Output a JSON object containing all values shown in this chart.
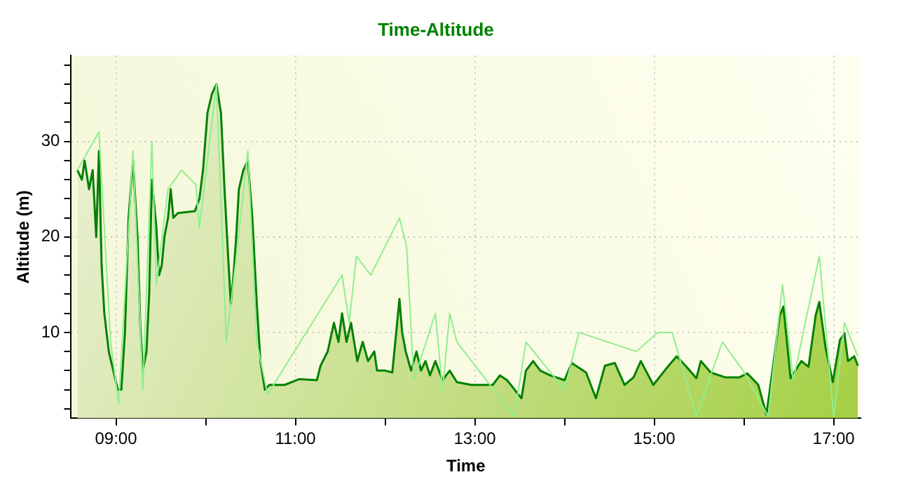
{
  "chart_data": {
    "type": "area",
    "title": "Time-Altitude",
    "xlabel": "Time",
    "ylabel": "Altitude (m)",
    "xlim": [
      8.5,
      17.3
    ],
    "xticks": [
      {
        "value": 9,
        "label": "09:00"
      },
      {
        "value": 10,
        "label": null
      },
      {
        "value": 11,
        "label": "11:00"
      },
      {
        "value": 12,
        "label": null
      },
      {
        "value": 13,
        "label": "13:00"
      },
      {
        "value": 14,
        "label": null
      },
      {
        "value": 15,
        "label": "15:00"
      },
      {
        "value": 16,
        "label": null
      },
      {
        "value": 17,
        "label": "17:00"
      }
    ],
    "ylim": [
      1,
      39
    ],
    "yticks": [
      {
        "value": 2,
        "label": null
      },
      {
        "value": 4,
        "label": null
      },
      {
        "value": 6,
        "label": null
      },
      {
        "value": 8,
        "label": null
      },
      10,
      {
        "value": 12,
        "label": null
      },
      {
        "value": 14,
        "label": null
      },
      {
        "value": 16,
        "label": null
      },
      {
        "value": 18,
        "label": null
      },
      20,
      {
        "value": 22,
        "label": null
      },
      {
        "value": 24,
        "label": null
      },
      {
        "value": 26,
        "label": null
      },
      {
        "value": 28,
        "label": null
      },
      30,
      {
        "value": 32,
        "label": null
      },
      {
        "value": 34,
        "label": null
      },
      {
        "value": 36,
        "label": null
      },
      {
        "value": 38,
        "label": null
      }
    ],
    "grid": true,
    "series": [
      {
        "type": "line",
        "color": "#90ee90",
        "x": [
          8.57,
          8.81,
          8.94,
          9.03,
          9.19,
          9.3,
          9.4,
          9.45,
          9.58,
          9.73,
          9.89,
          9.93,
          10.12,
          10.23,
          10.33,
          10.47,
          10.57,
          10.69,
          11.52,
          11.6,
          11.68,
          11.84,
          12.16,
          12.24,
          12.32,
          12.56,
          12.64,
          12.72,
          12.8,
          13.44,
          13.57,
          14.0,
          14.16,
          14.8,
          15.04,
          15.2,
          15.47,
          15.76,
          15.99,
          16.27,
          16.43,
          16.55,
          16.84,
          17.0,
          17.12,
          17.27
        ],
        "values": [
          27,
          31,
          9,
          2.5,
          29,
          4,
          30,
          15,
          25,
          27,
          25.5,
          21,
          36,
          9,
          17,
          29,
          9,
          3.5,
          16,
          11,
          18,
          16,
          22,
          19,
          5,
          12,
          4,
          12,
          9,
          1.2,
          9,
          4,
          10,
          8,
          10,
          10,
          1.2,
          9,
          6,
          1.2,
          15,
          5,
          18,
          1.2,
          11,
          7.5
        ]
      },
      {
        "color": "#008000",
        "x": [
          8.57,
          8.62,
          8.65,
          8.7,
          8.74,
          8.78,
          8.81,
          8.84,
          8.87,
          8.92,
          8.97,
          9.02,
          9.06,
          9.1,
          9.14,
          9.19,
          9.24,
          9.27,
          9.3,
          9.34,
          9.37,
          9.4,
          9.45,
          9.48,
          9.51,
          9.54,
          9.58,
          9.61,
          9.64,
          9.69,
          9.88,
          9.93,
          9.97,
          10.02,
          10.07,
          10.12,
          10.17,
          10.21,
          10.25,
          10.28,
          10.31,
          10.34,
          10.37,
          10.42,
          10.47,
          10.52,
          10.57,
          10.61,
          10.66,
          10.71,
          10.88,
          11.04,
          11.24,
          11.28,
          11.36,
          11.43,
          11.48,
          11.52,
          11.57,
          11.62,
          11.69,
          11.75,
          11.81,
          11.88,
          11.91,
          12.0,
          12.08,
          12.13,
          12.16,
          12.19,
          12.23,
          12.29,
          12.35,
          12.4,
          12.45,
          12.5,
          12.56,
          12.64,
          12.72,
          12.8,
          12.96,
          13.2,
          13.28,
          13.36,
          13.52,
          13.57,
          13.65,
          13.73,
          13.84,
          14.0,
          14.08,
          14.24,
          14.35,
          14.45,
          14.56,
          14.67,
          14.77,
          14.85,
          14.99,
          15.15,
          15.25,
          15.36,
          15.47,
          15.52,
          15.63,
          15.79,
          15.95,
          16.04,
          16.16,
          16.25,
          16.32,
          16.4,
          16.44,
          16.52,
          16.64,
          16.72,
          16.8,
          16.84,
          16.91,
          16.99,
          17.07,
          17.12,
          17.16,
          17.23,
          17.27
        ],
        "values": [
          27,
          26,
          28,
          25,
          27,
          20,
          29,
          17,
          12,
          8,
          6,
          4,
          4,
          10,
          22,
          28,
          20,
          11,
          6,
          8,
          14,
          26,
          21,
          16,
          17,
          20,
          22,
          25,
          22,
          22.5,
          22.7,
          24,
          27,
          33,
          35,
          36,
          33,
          25,
          18,
          13,
          16,
          20,
          25,
          27,
          28,
          22,
          13,
          7,
          4,
          4.5,
          4.5,
          5.1,
          5,
          6.5,
          8,
          11,
          9,
          12,
          9,
          11,
          7,
          9,
          7,
          8,
          6,
          6,
          5.8,
          10.6,
          13.5,
          10,
          8,
          6,
          8,
          6,
          7,
          5.5,
          7,
          5,
          6,
          4.8,
          4.5,
          4.5,
          5.5,
          5,
          3.1,
          6,
          7,
          6,
          5.5,
          5,
          6.8,
          5.8,
          3.1,
          6.5,
          6.8,
          4.5,
          5.3,
          7,
          4.5,
          6.4,
          7.5,
          6.4,
          5.2,
          7,
          5.8,
          5.3,
          5.3,
          5.7,
          4.5,
          1.4,
          6.1,
          11.8,
          12.7,
          5.2,
          7,
          6.4,
          11.8,
          13.2,
          8.4,
          4.8,
          9.2,
          9.9,
          7,
          7.5,
          6.5
        ]
      }
    ]
  }
}
